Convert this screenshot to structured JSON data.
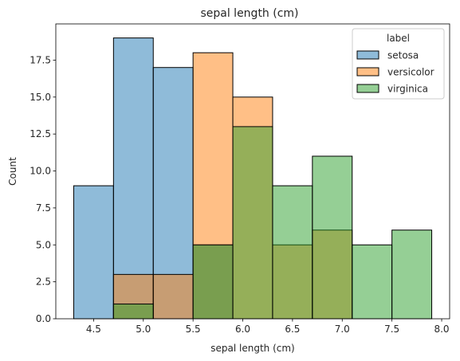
{
  "chart_data": {
    "type": "bar",
    "subtype": "histogram",
    "title": "sepal length (cm)",
    "xlabel": "sepal length (cm)",
    "ylabel": "Count",
    "bin_edges": [
      4.3,
      4.7,
      5.1,
      5.5,
      5.9,
      6.3,
      6.7,
      7.1,
      7.5,
      7.9
    ],
    "xlim": [
      4.12,
      8.08
    ],
    "ylim": [
      0,
      19.95
    ],
    "x_ticks": [
      4.5,
      5.0,
      5.5,
      6.0,
      6.5,
      7.0,
      7.5,
      8.0
    ],
    "x_tick_labels": [
      "4.5",
      "5.0",
      "5.5",
      "6.0",
      "6.5",
      "7.0",
      "7.5",
      "8.0"
    ],
    "y_ticks": [
      0,
      2.5,
      5,
      7.5,
      10,
      12.5,
      15,
      17.5
    ],
    "y_tick_labels": [
      "0.0",
      "2.5",
      "5.0",
      "7.5",
      "10.0",
      "12.5",
      "15.0",
      "17.5"
    ],
    "grid": false,
    "legend": {
      "title": "label",
      "placement": "top-right"
    },
    "series": [
      {
        "name": "setosa",
        "color": "#1f77b4",
        "values": [
          9,
          19,
          17,
          5,
          0,
          0,
          0,
          0,
          0
        ]
      },
      {
        "name": "versicolor",
        "color": "#ff7f0e",
        "values": [
          0,
          3,
          3,
          18,
          15,
          5,
          6,
          0,
          0
        ]
      },
      {
        "name": "virginica",
        "color": "#2ca02c",
        "values": [
          0,
          1,
          0,
          5,
          13,
          9,
          11,
          5,
          6
        ]
      }
    ],
    "bar_alpha": 0.5
  }
}
